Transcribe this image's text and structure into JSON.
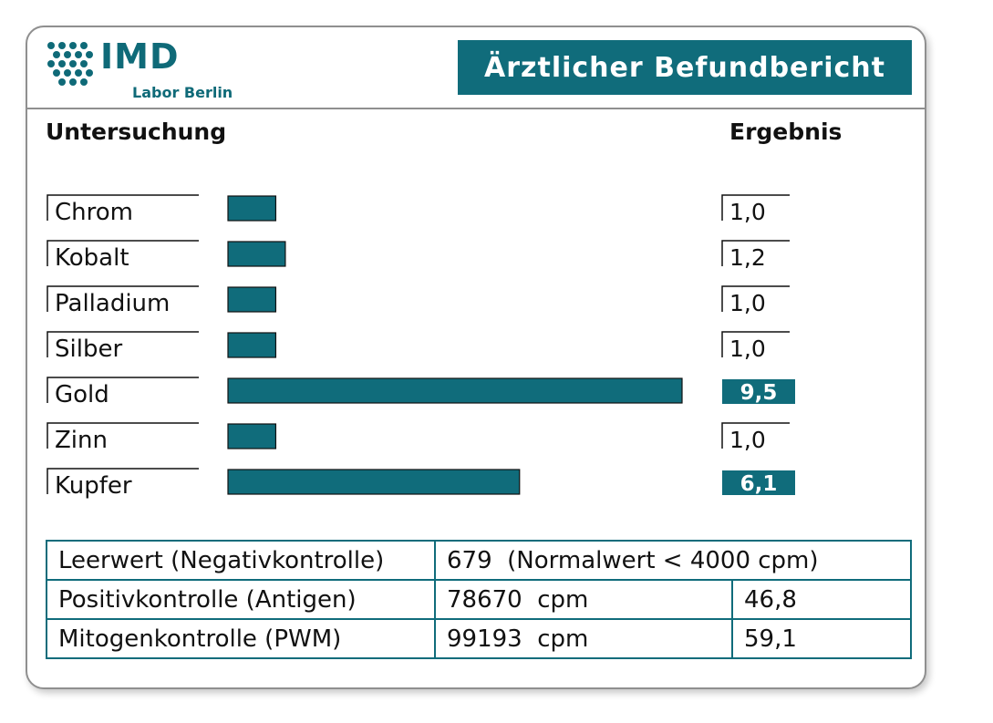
{
  "header": {
    "logo_text": "IMD",
    "logo_subtext": "Labor Berlin",
    "title": "Ärztlicher Befundbericht"
  },
  "columns": {
    "left": "Untersuchung",
    "right": "Ergebnis"
  },
  "colors": {
    "accent": "#106c7b",
    "border": "#8f8f8f"
  },
  "chart_data": {
    "type": "bar",
    "orientation": "horizontal",
    "categories": [
      "Chrom",
      "Kobalt",
      "Palladium",
      "Silber",
      "Gold",
      "Zinn",
      "Kupfer"
    ],
    "values": [
      1.0,
      1.2,
      1.0,
      1.0,
      9.5,
      1.0,
      6.1
    ],
    "value_labels": [
      "1,0",
      "1,2",
      "1,0",
      "1,0",
      "9,5",
      "1,0",
      "6,1"
    ],
    "highlighted": [
      false,
      false,
      false,
      false,
      true,
      false,
      true
    ],
    "xlim": [
      0,
      9.5
    ],
    "grid": false,
    "legend": "none"
  },
  "controls": [
    {
      "label": "Leerwert (Negativkontrolle)",
      "value": "679  (Normalwert < 4000 cpm)",
      "index": ""
    },
    {
      "label": "Positivkontrolle (Antigen)",
      "value": "78670  cpm",
      "index": "46,8"
    },
    {
      "label": "Mitogenkontrolle (PWM)",
      "value": "99193  cpm",
      "index": "59,1"
    }
  ]
}
